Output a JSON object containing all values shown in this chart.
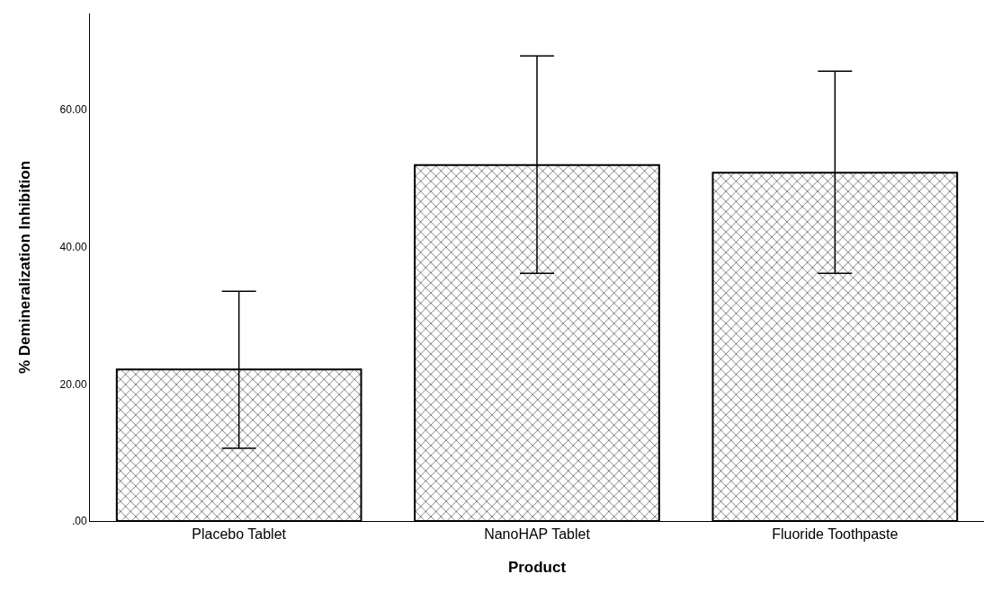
{
  "chart_data": {
    "type": "bar",
    "xlabel": "Product",
    "ylabel": "% Demineralization Inhibition",
    "categories": [
      "Placebo Tablet",
      "NanoHAP Tablet",
      "Fluoride Toothpaste"
    ],
    "values": [
      22.1,
      51.9,
      50.8
    ],
    "errors": [
      [
        10.6,
        33.5
      ],
      [
        36.1,
        67.8
      ],
      [
        36.1,
        65.6
      ]
    ],
    "color": "#000000",
    "ylim": [
      0,
      74
    ],
    "yticks": [
      {
        "value": 0,
        "label": ".00"
      },
      {
        "value": 20,
        "label": "20.00"
      },
      {
        "value": 40,
        "label": "40.00"
      },
      {
        "value": 60,
        "label": "60.00"
      }
    ],
    "grid": false
  }
}
